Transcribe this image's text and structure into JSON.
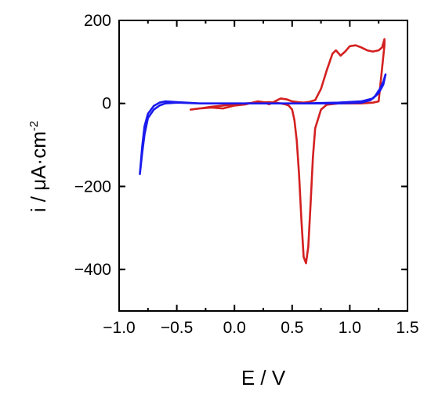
{
  "chart_data": {
    "type": "line",
    "xlabel": "E / V",
    "ylabel": "i / μA·cm",
    "ylabel_sup": "-2",
    "xlim": [
      -1.0,
      1.5
    ],
    "ylim": [
      -500,
      200
    ],
    "x_ticks": [
      -1.0,
      -0.5,
      0.0,
      0.5,
      1.0,
      1.5
    ],
    "x_tick_labels": [
      "−1.0",
      "−0.5",
      "0.0",
      "0.5",
      "1.0",
      "1.5"
    ],
    "y_ticks": [
      200,
      0,
      -200,
      -400
    ],
    "y_tick_labels": [
      "200",
      "0",
      "−200",
      "−400"
    ],
    "grid": false,
    "series": [
      {
        "color": "#d42020",
        "x": [
          -0.38,
          -0.3,
          -0.2,
          -0.1,
          0.0,
          0.1,
          0.2,
          0.25,
          0.3,
          0.4,
          0.45,
          0.5,
          0.55,
          0.6,
          0.65,
          0.7,
          0.75,
          0.8,
          0.85,
          0.88,
          0.92,
          0.96,
          1.0,
          1.05,
          1.1,
          1.15,
          1.2,
          1.25,
          1.28,
          1.3,
          1.3,
          1.25,
          1.2,
          1.1,
          1.0,
          0.9,
          0.8,
          0.75,
          0.7,
          0.68,
          0.66,
          0.64,
          0.62,
          0.6,
          0.58,
          0.56,
          0.54,
          0.52,
          0.5,
          0.47,
          0.44,
          0.4,
          0.35,
          0.3,
          0.2,
          0.1,
          0.0,
          -0.1,
          -0.2,
          -0.3,
          -0.38
        ],
        "y": [
          -15,
          -12,
          -10,
          -12,
          -5,
          -2,
          5,
          3,
          -2,
          12,
          10,
          5,
          3,
          2,
          4,
          8,
          35,
          80,
          120,
          128,
          115,
          125,
          138,
          140,
          135,
          128,
          125,
          128,
          135,
          155,
          140,
          5,
          2,
          0,
          0,
          0,
          -3,
          -15,
          -60,
          -130,
          -240,
          -345,
          -385,
          -370,
          -280,
          -170,
          -90,
          -40,
          -15,
          -5,
          -2,
          0,
          2,
          3,
          2,
          0,
          -2,
          -5,
          -8,
          -12,
          -15
        ]
      },
      {
        "color": "#1a1aee",
        "x": [
          -0.82,
          -0.8,
          -0.78,
          -0.75,
          -0.7,
          -0.65,
          -0.6,
          -0.5,
          -0.3,
          0.0,
          0.3,
          0.6,
          0.9,
          1.1,
          1.18,
          1.22,
          1.26,
          1.29,
          1.31,
          1.29,
          1.25,
          1.2,
          1.1,
          0.9,
          0.6,
          0.3,
          0.0,
          -0.3,
          -0.5,
          -0.6,
          -0.65,
          -0.7,
          -0.75,
          -0.78,
          -0.8,
          -0.82
        ],
        "y": [
          -170,
          -120,
          -75,
          -35,
          -15,
          -5,
          0,
          2,
          0,
          0,
          0,
          0,
          0,
          2,
          8,
          18,
          35,
          52,
          70,
          45,
          25,
          12,
          5,
          2,
          0,
          0,
          0,
          0,
          3,
          5,
          2,
          -6,
          -25,
          -55,
          -105,
          -170
        ]
      }
    ]
  }
}
